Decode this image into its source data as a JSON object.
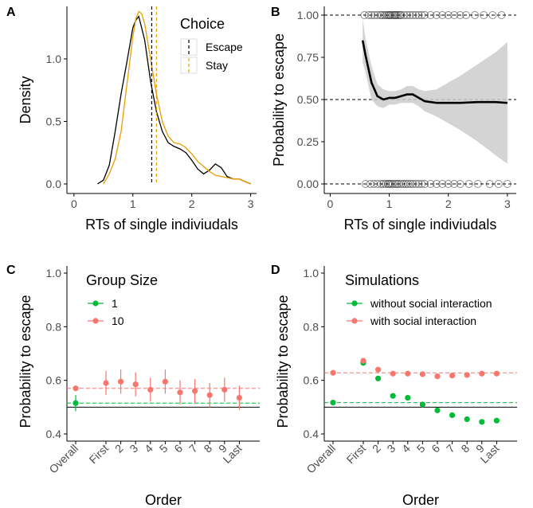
{
  "colors": {
    "escape": "#000000",
    "stay": "#E69F00",
    "group1": "#00BA38",
    "group10": "#F8766D",
    "ribbon": "#CCCCCC"
  },
  "chart_data": [
    {
      "panel": "A",
      "type": "line",
      "xlabel": "RTs of single indiviudals",
      "ylabel": "Density",
      "xlim": [
        0,
        3.1
      ],
      "ylim": [
        0,
        1.42
      ],
      "xticks": [
        0,
        1,
        2,
        3
      ],
      "yticks": [
        0.0,
        0.5,
        1.0
      ],
      "ytick_labels": [
        "0.0",
        "0.5",
        "1.0"
      ],
      "legend": {
        "title": "Choice",
        "position": "top-right",
        "entries": [
          "Escape",
          "Stay"
        ]
      },
      "series": [
        {
          "name": "Escape",
          "x": [
            0.4,
            0.5,
            0.6,
            0.7,
            0.8,
            0.9,
            1.0,
            1.05,
            1.1,
            1.2,
            1.3,
            1.4,
            1.5,
            1.6,
            1.7,
            1.8,
            1.9,
            2.0,
            2.1,
            2.2,
            2.3,
            2.4,
            2.5,
            2.6,
            2.7,
            2.8,
            2.9,
            3.0
          ],
          "y": [
            0.0,
            0.03,
            0.15,
            0.42,
            0.72,
            0.98,
            1.25,
            1.31,
            1.34,
            1.15,
            0.82,
            0.58,
            0.42,
            0.33,
            0.3,
            0.28,
            0.25,
            0.19,
            0.12,
            0.08,
            0.11,
            0.16,
            0.13,
            0.06,
            0.04,
            0.04,
            0.02,
            0.0
          ]
        },
        {
          "name": "Stay",
          "x": [
            0.5,
            0.6,
            0.7,
            0.8,
            0.9,
            1.0,
            1.05,
            1.1,
            1.15,
            1.2,
            1.3,
            1.4,
            1.5,
            1.6,
            1.7,
            1.8,
            1.9,
            2.0,
            2.1,
            2.2,
            2.3,
            2.4,
            2.5,
            2.6,
            2.7,
            2.8,
            2.9,
            3.0
          ],
          "y": [
            0.0,
            0.08,
            0.2,
            0.42,
            0.8,
            1.18,
            1.32,
            1.38,
            1.36,
            1.28,
            1.0,
            0.72,
            0.5,
            0.38,
            0.33,
            0.32,
            0.29,
            0.24,
            0.18,
            0.14,
            0.1,
            0.07,
            0.06,
            0.05,
            0.04,
            0.04,
            0.02,
            0.0
          ]
        }
      ],
      "vlines": [
        {
          "series": "Escape",
          "x": 1.32
        },
        {
          "series": "Stay",
          "x": 1.4
        }
      ]
    },
    {
      "panel": "B",
      "type": "line",
      "xlabel": "RTs of single indiviudals",
      "ylabel": "Probability to escape",
      "xlim": [
        -0.1,
        3.15
      ],
      "ylim": [
        -0.02,
        1.04
      ],
      "xticks": [
        0,
        1,
        2,
        3
      ],
      "yticks": [
        0.0,
        0.25,
        0.5,
        0.75,
        1.0
      ],
      "ytick_labels": [
        "0.00",
        "0.25",
        "0.50",
        "0.75",
        "1.00"
      ],
      "hlines": [
        0.0,
        0.5,
        1.0
      ],
      "fit": {
        "x": [
          0.55,
          0.6,
          0.7,
          0.8,
          0.9,
          1.0,
          1.1,
          1.2,
          1.3,
          1.4,
          1.5,
          1.6,
          1.8,
          2.0,
          2.2,
          2.5,
          2.8,
          3.0
        ],
        "y": [
          0.85,
          0.76,
          0.6,
          0.52,
          0.5,
          0.51,
          0.51,
          0.52,
          0.53,
          0.53,
          0.51,
          0.49,
          0.48,
          0.48,
          0.48,
          0.485,
          0.485,
          0.48
        ],
        "lower": [
          0.72,
          0.66,
          0.5,
          0.46,
          0.45,
          0.47,
          0.47,
          0.48,
          0.48,
          0.48,
          0.46,
          0.43,
          0.4,
          0.36,
          0.32,
          0.25,
          0.17,
          0.12
        ],
        "upper": [
          0.98,
          0.86,
          0.7,
          0.59,
          0.56,
          0.55,
          0.55,
          0.56,
          0.58,
          0.58,
          0.56,
          0.55,
          0.56,
          0.6,
          0.64,
          0.71,
          0.78,
          0.84
        ]
      },
      "raw_points_escape_x": [
        0.58,
        0.65,
        0.7,
        0.75,
        0.8,
        0.85,
        0.88,
        0.92,
        0.95,
        0.98,
        1.0,
        1.02,
        1.05,
        1.08,
        1.1,
        1.12,
        1.15,
        1.18,
        1.2,
        1.25,
        1.3,
        1.35,
        1.4,
        1.45,
        1.5,
        1.55,
        1.6,
        1.7,
        1.8,
        1.9,
        2.0,
        2.1,
        2.2,
        2.3,
        2.45,
        2.6,
        2.75,
        2.9
      ],
      "raw_points_stay_x": [
        0.6,
        0.68,
        0.74,
        0.8,
        0.86,
        0.9,
        0.94,
        0.98,
        1.0,
        1.03,
        1.06,
        1.1,
        1.13,
        1.16,
        1.2,
        1.24,
        1.28,
        1.32,
        1.36,
        1.4,
        1.45,
        1.5,
        1.55,
        1.6,
        1.7,
        1.8,
        1.9,
        2.0,
        2.1,
        2.2,
        2.35,
        2.5,
        2.7,
        2.85,
        3.0
      ]
    },
    {
      "panel": "C",
      "type": "scatter",
      "xlabel": "Order",
      "ylabel": "Probability to escape",
      "categories": [
        "Overall",
        "First",
        "2",
        "3",
        "4",
        "5",
        "6",
        "7",
        "8",
        "9",
        "Last"
      ],
      "ylim": [
        0.38,
        1.04
      ],
      "yticks": [
        0.4,
        0.6,
        0.8,
        1.0
      ],
      "ytick_labels": [
        "0.4",
        "0.6",
        "0.8",
        "1.0"
      ],
      "legend": {
        "title": "Group Size",
        "position": "top-left",
        "entries": [
          "1",
          "10"
        ]
      },
      "hline_solid": 0.5,
      "series": [
        {
          "name": "1",
          "key": "group1",
          "values": [
            0.515,
            null,
            null,
            null,
            null,
            null,
            null,
            null,
            null,
            null,
            null
          ],
          "err": [
            0.03,
            null,
            null,
            null,
            null,
            null,
            null,
            null,
            null,
            null,
            null
          ],
          "dashed": 0.515
        },
        {
          "name": "10",
          "key": "group10",
          "values": [
            0.57,
            0.59,
            0.595,
            0.585,
            0.565,
            0.595,
            0.555,
            0.56,
            0.545,
            0.565,
            0.535
          ],
          "err": [
            0.01,
            0.045,
            0.045,
            0.045,
            0.045,
            0.045,
            0.045,
            0.045,
            0.045,
            0.045,
            0.045
          ],
          "dashed": 0.57
        }
      ]
    },
    {
      "panel": "D",
      "type": "scatter",
      "xlabel": "Order",
      "ylabel": "Probability to escape",
      "categories": [
        "Overall",
        "First",
        "2",
        "3",
        "4",
        "5",
        "6",
        "7",
        "8",
        "9",
        "Last"
      ],
      "ylim": [
        0.38,
        1.04
      ],
      "yticks": [
        0.4,
        0.6,
        0.8,
        1.0
      ],
      "ytick_labels": [
        "0.4",
        "0.6",
        "0.8",
        "1.0"
      ],
      "legend": {
        "title": "Simulations",
        "position": "top-left",
        "entries": [
          "without social interaction",
          "with social interaction"
        ]
      },
      "hline_solid": 0.5,
      "series": [
        {
          "name": "without social interaction",
          "key": "group1",
          "values": [
            0.517,
            0.665,
            0.607,
            0.542,
            0.535,
            0.51,
            0.488,
            0.47,
            0.455,
            0.445,
            0.45
          ],
          "dashed": 0.517
        },
        {
          "name": "with social interaction",
          "key": "group10",
          "values": [
            0.628,
            0.673,
            0.64,
            0.625,
            0.625,
            0.623,
            0.615,
            0.618,
            0.62,
            0.625,
            0.625
          ],
          "dashed": 0.628
        }
      ]
    }
  ]
}
